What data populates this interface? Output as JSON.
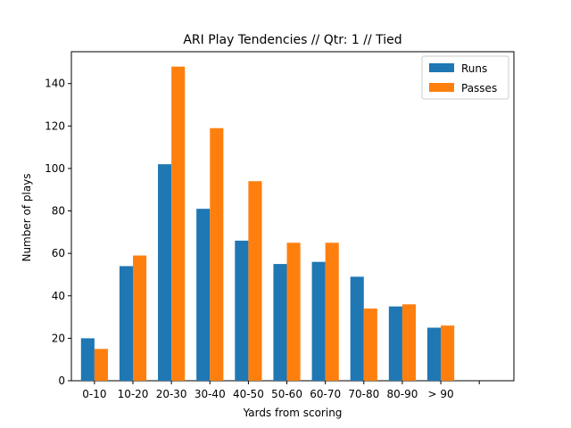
{
  "chart_data": {
    "type": "bar",
    "title": "ARI Play Tendencies // Qtr: 1 // Tied",
    "xlabel": "Yards from scoring",
    "ylabel": "Number of plays",
    "categories": [
      "0-10",
      "10-20",
      "20-30",
      "30-40",
      "40-50",
      "50-60",
      "60-70",
      "70-80",
      "80-90",
      "> 90"
    ],
    "series": [
      {
        "name": "Runs",
        "values": [
          20,
          54,
          102,
          81,
          66,
          55,
          56,
          49,
          35,
          25
        ],
        "color": "#1f77b4"
      },
      {
        "name": "Passes",
        "values": [
          15,
          59,
          148,
          119,
          94,
          65,
          65,
          34,
          36,
          26
        ],
        "color": "#ff7f0e"
      }
    ],
    "ylim": [
      0,
      155
    ],
    "yticks": [
      0,
      20,
      40,
      60,
      80,
      100,
      120,
      140
    ],
    "legend_position": "top-right",
    "grid": false
  }
}
